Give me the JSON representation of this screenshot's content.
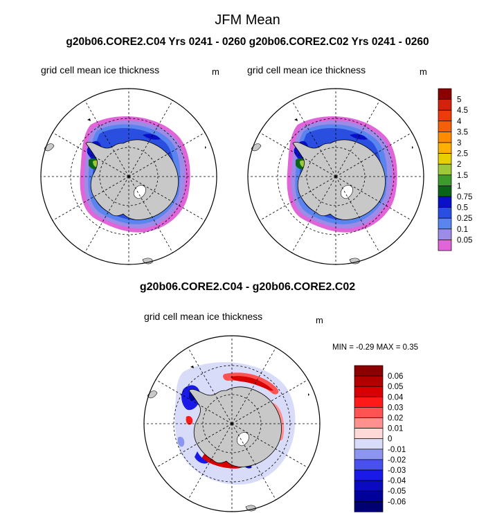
{
  "figure": {
    "title": "JFM Mean",
    "subtitle": "g20b06.CORE2.C04  Yrs 0241 - 0260 g20b06.CORE2.C02  Yrs 0241 - 0260",
    "difference_title": "g20b06.CORE2.C04 - g20b06.CORE2.C02"
  },
  "panels": [
    {
      "label": "grid cell mean ice thickness",
      "units": "m"
    },
    {
      "label": "grid cell mean ice thickness",
      "units": "m"
    },
    {
      "label": "grid cell mean ice thickness",
      "units": "m",
      "stats": "MIN =   -0.29 MAX =   0.35"
    }
  ],
  "colorbar_main": {
    "labels": [
      "5",
      "4.5",
      "4",
      "3.5",
      "3",
      "2.5",
      "2",
      "1.5",
      "1",
      "0.75",
      "0.5",
      "0.25",
      "0.1",
      "0.05"
    ],
    "colors": [
      "#8b0000",
      "#d2220c",
      "#ee3a0c",
      "#f45f0a",
      "#ff8c00",
      "#ffb000",
      "#e8d000",
      "#9cc83a",
      "#3c9b2a",
      "#0a6418",
      "#0a10c8",
      "#2a4ee0",
      "#5a84ee",
      "#9c8ce8",
      "#e065d8"
    ]
  },
  "colorbar_diff": {
    "labels": [
      "0.06",
      "0.05",
      "0.04",
      "0.03",
      "0.02",
      "0.01",
      "0",
      "-0.01",
      "-0.02",
      "-0.03",
      "-0.04",
      "-0.05",
      "-0.06"
    ],
    "colors": [
      "#8b0000",
      "#b00000",
      "#d80000",
      "#ff1a1a",
      "#ff5252",
      "#ff9090",
      "#ffd8d8",
      "#d8dcf8",
      "#8c96f0",
      "#4850f0",
      "#1a1ae8",
      "#0a0ac0",
      "#00009a",
      "#000070"
    ]
  }
}
